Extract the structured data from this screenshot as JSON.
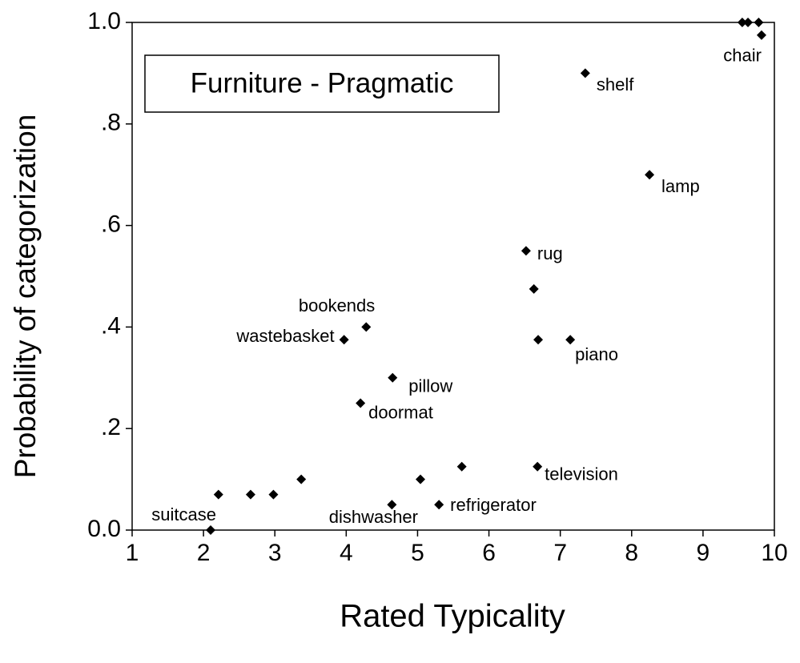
{
  "chart_data": {
    "type": "scatter",
    "title": "Furniture - Pragmatic",
    "x_label": "Rated Typicality",
    "y_label": "Probability of categorization",
    "x": [
      2.1,
      2.21,
      2.66,
      2.98,
      3.37,
      3.97,
      4.28,
      4.65,
      4.2,
      4.64,
      5.04,
      5.3,
      5.62,
      6.52,
      6.63,
      6.69,
      7.14,
      6.68,
      7.35,
      8.25,
      9.55,
      9.63,
      9.78,
      9.82
    ],
    "values": [
      0.0,
      0.07,
      0.07,
      0.07,
      0.1,
      0.375,
      0.4,
      0.3,
      0.25,
      0.05,
      0.1,
      0.05,
      0.125,
      0.55,
      0.475,
      0.375,
      0.375,
      0.125,
      0.9,
      0.7,
      1.0,
      1.0,
      1.0,
      0.975
    ],
    "point_labels": [
      "suitcase",
      null,
      null,
      null,
      null,
      "wastebasket",
      "bookends",
      "pillow",
      "doormat",
      "dishwasher",
      null,
      "refrigerator",
      null,
      "rug",
      null,
      null,
      "piano",
      "television",
      "shelf",
      "lamp",
      null,
      null,
      null,
      "chair"
    ],
    "color": "#000000",
    "xlim": [
      1,
      10
    ],
    "xticks": [
      1,
      2,
      3,
      4,
      5,
      6,
      7,
      8,
      9,
      10
    ],
    "ylim": [
      0,
      1
    ],
    "yticks": [
      {
        "value": 0,
        "label": "0.0"
      },
      {
        "value": 0.2,
        "label": ".2"
      },
      {
        "value": 0.4,
        "label": ".4"
      },
      {
        "value": 0.6,
        "label": ".6"
      },
      {
        "value": 0.8,
        "label": ".8"
      },
      {
        "value": 1,
        "label": "1.0"
      }
    ],
    "grid": false
  }
}
